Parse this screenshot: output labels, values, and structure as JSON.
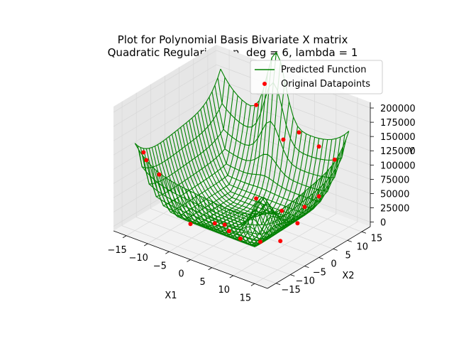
{
  "chart_data": {
    "type": "surface3d",
    "title": [
      "Plot for Polynomial Basis Bivariate X matrix",
      "Quadratic Regularisation, deg = 6, lambda = 1"
    ],
    "xlabel": "X1",
    "ylabel": "X2",
    "zlabel": "Y",
    "xlim": [
      -18,
      18
    ],
    "ylim": [
      -18,
      18
    ],
    "zlim": [
      -8000,
      210000
    ],
    "xticks": [
      -15,
      -10,
      -5,
      0,
      5,
      10,
      15
    ],
    "yticks": [
      -15,
      -10,
      -5,
      0,
      5,
      10,
      15
    ],
    "zticks": [
      0,
      25000,
      50000,
      75000,
      100000,
      125000,
      150000,
      175000,
      200000
    ],
    "zticklabels": [
      "0",
      "25000",
      "50000",
      "75000",
      "100000",
      "125000",
      "150000",
      "175000",
      "200000"
    ],
    "xticklabels": [
      "−15",
      "−10",
      "−5",
      "0",
      "5",
      "10",
      "15"
    ],
    "yticklabels": [
      "−15",
      "−10",
      "−5",
      "0",
      "5",
      "10",
      "15"
    ],
    "legend": {
      "position": "top-right",
      "entries": [
        {
          "label": "Predicted Function",
          "marker": "line",
          "color": "#008000"
        },
        {
          "label": "Original Datapoints",
          "marker": "dot",
          "color": "#ff0000"
        }
      ]
    },
    "surface": {
      "name": "Predicted Function",
      "color": "#008000",
      "x_range": [
        -15,
        15
      ],
      "y_range": [
        -15,
        15
      ],
      "grid": 31,
      "corner_values": {
        "x-15_y-15": 145000,
        "x15_y-15": 110000,
        "x-15_y15": 185000,
        "x15_y15": 160000
      }
    },
    "points": {
      "name": "Original Datapoints",
      "color": "#ff0000",
      "data": [
        {
          "x": -15,
          "y": -12,
          "z": 120000
        },
        {
          "x": -14,
          "y": -8,
          "z": 72000
        },
        {
          "x": -13,
          "y": -14,
          "z": 118000
        },
        {
          "x": -2,
          "y": -15,
          "z": 40000
        },
        {
          "x": 3,
          "y": -14,
          "z": 52000
        },
        {
          "x": 5,
          "y": -12,
          "z": 38000
        },
        {
          "x": 6,
          "y": -15,
          "z": 61000
        },
        {
          "x": 9,
          "y": -14,
          "z": 42000
        },
        {
          "x": 11,
          "y": -10,
          "z": 30000
        },
        {
          "x": 13,
          "y": -6,
          "z": 25000
        },
        {
          "x": -6,
          "y": 14,
          "z": 150000
        },
        {
          "x": 1,
          "y": 13,
          "z": 112000
        },
        {
          "x": 4,
          "y": 14,
          "z": 130000
        },
        {
          "x": 10,
          "y": 12,
          "z": 128000
        },
        {
          "x": 15,
          "y": 10,
          "z": 125000
        },
        {
          "x": 8,
          "y": 2,
          "z": 40000
        },
        {
          "x": 12,
          "y": 4,
          "z": 52000
        },
        {
          "x": 14,
          "y": 6,
          "z": 70000
        },
        {
          "x": 13,
          "y": 0,
          "z": 38000
        },
        {
          "x": 0,
          "y": 5,
          "z": 30000
        }
      ]
    },
    "grid": true,
    "pane_color": "#f2f2f2"
  }
}
